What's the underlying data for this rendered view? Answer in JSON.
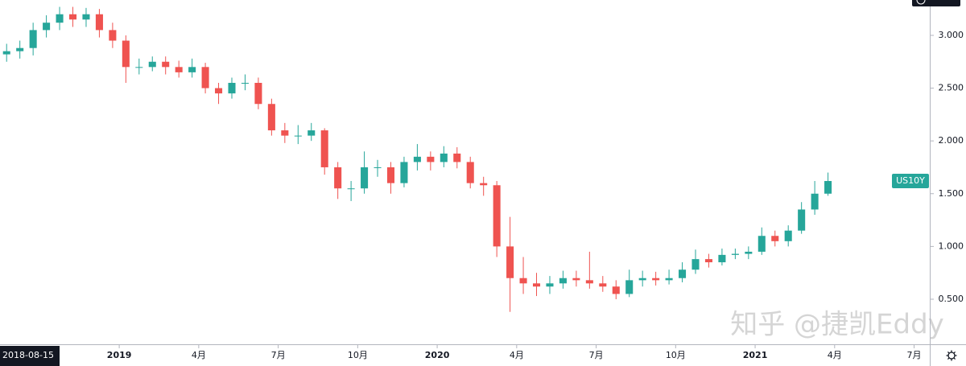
{
  "chart_data": {
    "type": "candlestick",
    "symbol": "US10Y",
    "crosshair_date": "2018-08-15",
    "watermark": "知乎 @捷凯Eddy",
    "up_color": "#26a69a",
    "down_color": "#ef5350",
    "xlim": [
      0,
      35
    ],
    "xticks": [
      {
        "value": 4.5,
        "label": "2019"
      },
      {
        "value": 7.5,
        "label": "4月"
      },
      {
        "value": 10.5,
        "label": "7月"
      },
      {
        "value": 13.5,
        "label": "10月"
      },
      {
        "value": 16.5,
        "label": "2020"
      },
      {
        "value": 19.5,
        "label": "4月"
      },
      {
        "value": 22.5,
        "label": "7月"
      },
      {
        "value": 25.5,
        "label": "10月"
      },
      {
        "value": 28.5,
        "label": "2021"
      },
      {
        "value": 31.5,
        "label": "4月"
      },
      {
        "value": 34.5,
        "label": "7月"
      }
    ],
    "ylim": [
      0.073,
      3.335
    ],
    "yticks": [
      {
        "value": 0.5,
        "label": "0.500"
      },
      {
        "value": 1,
        "label": "1.000"
      },
      {
        "value": 1.5,
        "label": "1.500"
      },
      {
        "value": 2,
        "label": "2.000"
      },
      {
        "value": 2.5,
        "label": "2.500"
      },
      {
        "value": 3,
        "label": "3.000"
      }
    ],
    "x": [
      0.25,
      0.75,
      1.25,
      1.75,
      2.25,
      2.75,
      3.25,
      3.75,
      4.25,
      4.75,
      5.25,
      5.75,
      6.25,
      6.75,
      7.25,
      7.75,
      8.25,
      8.75,
      9.25,
      9.75,
      10.25,
      10.75,
      11.25,
      11.75,
      12.25,
      12.75,
      13.25,
      13.75,
      14.25,
      14.75,
      15.25,
      15.75,
      16.25,
      16.75,
      17.25,
      17.75,
      18.25,
      18.75,
      19.25,
      19.75,
      20.25,
      20.75,
      21.25,
      21.75,
      22.25,
      22.75,
      23.25,
      23.75,
      24.25,
      24.75,
      25.25,
      25.75,
      26.25,
      26.75,
      27.25,
      27.75,
      28.25,
      28.75,
      29.25,
      29.75,
      30.25,
      30.75,
      31.25
    ],
    "open": [
      2.82,
      2.85,
      2.88,
      3.05,
      3.12,
      3.2,
      3.15,
      3.2,
      3.05,
      2.95,
      2.7,
      2.7,
      2.75,
      2.7,
      2.65,
      2.7,
      2.5,
      2.45,
      2.55,
      2.55,
      2.35,
      2.1,
      2.05,
      2.05,
      2.1,
      1.75,
      1.55,
      1.55,
      1.75,
      1.75,
      1.6,
      1.8,
      1.85,
      1.8,
      1.88,
      1.8,
      1.6,
      1.58,
      1.0,
      0.7,
      0.65,
      0.62,
      0.65,
      0.7,
      0.68,
      0.65,
      0.62,
      0.55,
      0.68,
      0.7,
      0.68,
      0.7,
      0.78,
      0.88,
      0.85,
      0.92,
      0.93,
      0.95,
      1.1,
      1.05,
      1.15,
      1.35,
      1.5
    ],
    "high": [
      2.92,
      2.95,
      3.12,
      3.19,
      3.27,
      3.27,
      3.26,
      3.25,
      3.12,
      3.0,
      2.78,
      2.8,
      2.8,
      2.76,
      2.78,
      2.74,
      2.55,
      2.6,
      2.63,
      2.6,
      2.4,
      2.17,
      2.15,
      2.17,
      2.12,
      1.8,
      1.62,
      1.9,
      1.82,
      1.8,
      1.85,
      1.97,
      1.9,
      1.95,
      1.94,
      1.85,
      1.66,
      1.62,
      1.28,
      0.9,
      0.75,
      0.72,
      0.77,
      0.77,
      0.95,
      0.72,
      0.68,
      0.78,
      0.77,
      0.76,
      0.78,
      0.85,
      0.97,
      0.93,
      0.98,
      0.98,
      1.0,
      1.18,
      1.15,
      1.2,
      1.42,
      1.62,
      1.7
    ],
    "low": [
      2.75,
      2.78,
      2.81,
      2.98,
      3.05,
      3.08,
      3.08,
      2.98,
      2.88,
      2.55,
      2.63,
      2.66,
      2.63,
      2.6,
      2.6,
      2.45,
      2.35,
      2.4,
      2.48,
      2.3,
      2.05,
      1.98,
      1.97,
      2.0,
      1.68,
      1.45,
      1.43,
      1.5,
      1.66,
      1.5,
      1.56,
      1.72,
      1.72,
      1.75,
      1.74,
      1.55,
      1.48,
      0.9,
      0.38,
      0.55,
      0.53,
      0.55,
      0.6,
      0.62,
      0.6,
      0.57,
      0.5,
      0.52,
      0.62,
      0.63,
      0.64,
      0.66,
      0.74,
      0.8,
      0.82,
      0.88,
      0.88,
      0.92,
      1.0,
      1.0,
      1.12,
      1.3,
      1.48
    ],
    "close": [
      2.85,
      2.88,
      3.05,
      3.12,
      3.2,
      3.15,
      3.2,
      3.05,
      2.95,
      2.7,
      2.7,
      2.75,
      2.7,
      2.65,
      2.7,
      2.5,
      2.45,
      2.55,
      2.55,
      2.35,
      2.1,
      2.05,
      2.05,
      2.1,
      1.75,
      1.55,
      1.55,
      1.75,
      1.75,
      1.6,
      1.8,
      1.85,
      1.8,
      1.88,
      1.8,
      1.6,
      1.58,
      1.0,
      0.7,
      0.65,
      0.62,
      0.65,
      0.7,
      0.68,
      0.65,
      0.62,
      0.55,
      0.68,
      0.7,
      0.68,
      0.7,
      0.78,
      0.88,
      0.85,
      0.92,
      0.93,
      0.95,
      1.1,
      1.05,
      1.15,
      1.35,
      1.5,
      1.62
    ]
  }
}
